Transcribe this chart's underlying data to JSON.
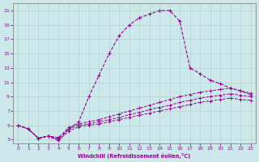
{
  "bg_color": "#cce8e8",
  "line_color": "#990099",
  "xlabel": "Windchill (Refroidissement éolien,°C)",
  "x_ticks": [
    0,
    1,
    2,
    3,
    4,
    5,
    6,
    7,
    8,
    9,
    10,
    11,
    12,
    13,
    14,
    15,
    16,
    17,
    18,
    19,
    20,
    21,
    22,
    23
  ],
  "y_ticks": [
    3,
    5,
    7,
    9,
    11,
    13,
    15,
    17,
    19,
    21
  ],
  "ylim": [
    2.5,
    22.0
  ],
  "xlim": [
    -0.5,
    23.5
  ],
  "big_curve": [
    5.0,
    4.5,
    3.2,
    3.5,
    2.9,
    4.5,
    5.5,
    9.0,
    12.0,
    15.0,
    17.5,
    19.0,
    20.0,
    20.5,
    21.0,
    21.0,
    19.5,
    13.0,
    12.2,
    11.3,
    10.8,
    10.2,
    9.8,
    9.3
  ],
  "flat1": [
    5.0,
    4.5,
    3.2,
    3.5,
    3.3,
    4.7,
    5.2,
    5.5,
    5.8,
    6.2,
    6.6,
    7.0,
    7.4,
    7.8,
    8.2,
    8.6,
    9.0,
    9.3,
    9.6,
    9.8,
    10.0,
    10.2,
    9.8,
    9.5
  ],
  "flat2": [
    5.0,
    4.5,
    3.2,
    3.5,
    3.2,
    4.5,
    5.0,
    5.2,
    5.5,
    5.8,
    6.1,
    6.5,
    6.8,
    7.2,
    7.5,
    7.8,
    8.2,
    8.5,
    8.8,
    9.0,
    9.2,
    9.4,
    9.2,
    9.0
  ],
  "flat3": [
    5.0,
    4.5,
    3.2,
    3.5,
    2.9,
    4.2,
    4.8,
    5.0,
    5.2,
    5.5,
    5.8,
    6.1,
    6.4,
    6.7,
    7.0,
    7.3,
    7.6,
    7.9,
    8.2,
    8.4,
    8.6,
    8.8,
    8.6,
    8.5
  ]
}
